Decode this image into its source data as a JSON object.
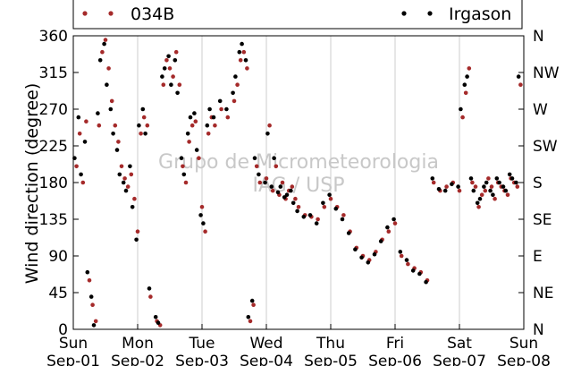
{
  "chart_data": {
    "type": "scatter",
    "title": "",
    "xlabel": "",
    "ylabel": "Wind direction (degree)",
    "ylim": [
      0,
      360
    ],
    "xlim_days": [
      0,
      7
    ],
    "y_ticks": [
      0,
      45,
      90,
      135,
      180,
      225,
      270,
      315,
      360
    ],
    "y_right_ticks": [
      {
        "value": 0,
        "label": "N"
      },
      {
        "value": 45,
        "label": "NE"
      },
      {
        "value": 90,
        "label": "E"
      },
      {
        "value": 135,
        "label": "SE"
      },
      {
        "value": 180,
        "label": "S"
      },
      {
        "value": 225,
        "label": "SW"
      },
      {
        "value": 270,
        "label": "W"
      },
      {
        "value": 315,
        "label": "NW"
      },
      {
        "value": 360,
        "label": "N"
      }
    ],
    "x_ticks": [
      {
        "day": "Sun",
        "date": "Sep-01"
      },
      {
        "day": "Mon",
        "date": "Sep-02"
      },
      {
        "day": "Tue",
        "date": "Sep-03"
      },
      {
        "day": "Wed",
        "date": "Sep-04"
      },
      {
        "day": "Thu",
        "date": "Sep-05"
      },
      {
        "day": "Fri",
        "date": "Sep-06"
      },
      {
        "day": "Sat",
        "date": "Sep-07"
      },
      {
        "day": "Sun",
        "date": "Sep-08"
      }
    ],
    "grid": "vertical",
    "legend_placement": "top",
    "watermark": [
      "Grupo de Micrometeorologia",
      "IAG / USP"
    ],
    "series": [
      {
        "name": "034B",
        "color": "#a52a2a",
        "points": [
          [
            0.05,
            200
          ],
          [
            0.1,
            240
          ],
          [
            0.15,
            180
          ],
          [
            0.2,
            255
          ],
          [
            0.25,
            60
          ],
          [
            0.3,
            30
          ],
          [
            0.35,
            10
          ],
          [
            0.4,
            250
          ],
          [
            0.45,
            340
          ],
          [
            0.5,
            355
          ],
          [
            0.55,
            320
          ],
          [
            0.6,
            280
          ],
          [
            0.65,
            250
          ],
          [
            0.7,
            230
          ],
          [
            0.75,
            200
          ],
          [
            0.8,
            185
          ],
          [
            0.85,
            175
          ],
          [
            0.9,
            190
          ],
          [
            0.95,
            160
          ],
          [
            1.0,
            120
          ],
          [
            1.05,
            240
          ],
          [
            1.1,
            260
          ],
          [
            1.15,
            250
          ],
          [
            1.2,
            40
          ],
          [
            1.3,
            10
          ],
          [
            1.35,
            5
          ],
          [
            1.4,
            300
          ],
          [
            1.45,
            330
          ],
          [
            1.5,
            320
          ],
          [
            1.55,
            310
          ],
          [
            1.6,
            340
          ],
          [
            1.65,
            300
          ],
          [
            1.7,
            200
          ],
          [
            1.75,
            180
          ],
          [
            1.8,
            230
          ],
          [
            1.85,
            250
          ],
          [
            1.9,
            255
          ],
          [
            1.95,
            210
          ],
          [
            2.0,
            150
          ],
          [
            2.05,
            120
          ],
          [
            2.1,
            240
          ],
          [
            2.15,
            260
          ],
          [
            2.2,
            250
          ],
          [
            2.3,
            270
          ],
          [
            2.4,
            260
          ],
          [
            2.5,
            280
          ],
          [
            2.55,
            300
          ],
          [
            2.6,
            330
          ],
          [
            2.65,
            340
          ],
          [
            2.7,
            320
          ],
          [
            2.75,
            10
          ],
          [
            2.8,
            30
          ],
          [
            2.85,
            200
          ],
          [
            2.9,
            180
          ],
          [
            3.0,
            185
          ],
          [
            3.1,
            170
          ],
          [
            3.2,
            165
          ],
          [
            3.3,
            160
          ],
          [
            3.4,
            175
          ],
          [
            3.5,
            150
          ],
          [
            3.6,
            140
          ],
          [
            3.7,
            138
          ],
          [
            3.8,
            135
          ],
          [
            3.9,
            150
          ],
          [
            4.0,
            160
          ],
          [
            4.1,
            150
          ],
          [
            4.2,
            140
          ],
          [
            4.3,
            120
          ],
          [
            4.4,
            100
          ],
          [
            4.5,
            90
          ],
          [
            4.6,
            85
          ],
          [
            4.7,
            95
          ],
          [
            4.8,
            110
          ],
          [
            4.9,
            120
          ],
          [
            5.0,
            130
          ],
          [
            5.1,
            90
          ],
          [
            5.2,
            80
          ],
          [
            5.3,
            75
          ],
          [
            5.4,
            70
          ],
          [
            5.5,
            60
          ],
          [
            5.6,
            180
          ],
          [
            5.7,
            170
          ],
          [
            5.8,
            175
          ],
          [
            5.9,
            180
          ],
          [
            6.0,
            170
          ],
          [
            6.05,
            260
          ],
          [
            6.1,
            290
          ],
          [
            6.15,
            320
          ],
          [
            6.2,
            180
          ],
          [
            6.25,
            175
          ],
          [
            6.3,
            150
          ],
          [
            6.35,
            165
          ],
          [
            6.4,
            170
          ],
          [
            6.45,
            185
          ],
          [
            6.5,
            175
          ],
          [
            6.55,
            160
          ],
          [
            6.6,
            180
          ],
          [
            6.65,
            175
          ],
          [
            6.7,
            170
          ],
          [
            6.75,
            165
          ],
          [
            6.8,
            185
          ],
          [
            6.85,
            180
          ],
          [
            6.9,
            175
          ],
          [
            6.95,
            300
          ],
          [
            3.05,
            250
          ],
          [
            3.15,
            200
          ],
          [
            3.25,
            180
          ],
          [
            3.35,
            170
          ],
          [
            3.45,
            160
          ]
        ]
      },
      {
        "name": "Irgason",
        "color": "#000000",
        "points": [
          [
            0.02,
            210
          ],
          [
            0.08,
            260
          ],
          [
            0.12,
            190
          ],
          [
            0.18,
            230
          ],
          [
            0.22,
            70
          ],
          [
            0.28,
            40
          ],
          [
            0.32,
            5
          ],
          [
            0.38,
            265
          ],
          [
            0.42,
            330
          ],
          [
            0.48,
            350
          ],
          [
            0.52,
            300
          ],
          [
            0.58,
            270
          ],
          [
            0.62,
            240
          ],
          [
            0.68,
            220
          ],
          [
            0.72,
            190
          ],
          [
            0.78,
            180
          ],
          [
            0.82,
            170
          ],
          [
            0.88,
            200
          ],
          [
            0.92,
            150
          ],
          [
            0.98,
            110
          ],
          [
            1.02,
            250
          ],
          [
            1.08,
            270
          ],
          [
            1.12,
            240
          ],
          [
            1.18,
            50
          ],
          [
            1.28,
            15
          ],
          [
            1.32,
            8
          ],
          [
            1.38,
            310
          ],
          [
            1.42,
            320
          ],
          [
            1.48,
            335
          ],
          [
            1.52,
            300
          ],
          [
            1.58,
            330
          ],
          [
            1.62,
            290
          ],
          [
            1.68,
            210
          ],
          [
            1.72,
            190
          ],
          [
            1.78,
            240
          ],
          [
            1.82,
            260
          ],
          [
            1.88,
            265
          ],
          [
            1.92,
            220
          ],
          [
            1.98,
            140
          ],
          [
            2.02,
            130
          ],
          [
            2.08,
            250
          ],
          [
            2.12,
            270
          ],
          [
            2.18,
            260
          ],
          [
            2.28,
            280
          ],
          [
            2.38,
            270
          ],
          [
            2.48,
            290
          ],
          [
            2.52,
            310
          ],
          [
            2.58,
            340
          ],
          [
            2.62,
            350
          ],
          [
            2.68,
            330
          ],
          [
            2.72,
            15
          ],
          [
            2.78,
            35
          ],
          [
            2.82,
            210
          ],
          [
            2.88,
            190
          ],
          [
            2.98,
            180
          ],
          [
            3.08,
            175
          ],
          [
            3.18,
            168
          ],
          [
            3.28,
            162
          ],
          [
            3.38,
            170
          ],
          [
            3.48,
            145
          ],
          [
            3.58,
            138
          ],
          [
            3.68,
            140
          ],
          [
            3.78,
            130
          ],
          [
            3.88,
            155
          ],
          [
            3.98,
            165
          ],
          [
            4.08,
            148
          ],
          [
            4.18,
            135
          ],
          [
            4.28,
            118
          ],
          [
            4.38,
            98
          ],
          [
            4.48,
            88
          ],
          [
            4.58,
            82
          ],
          [
            4.68,
            92
          ],
          [
            4.78,
            108
          ],
          [
            4.88,
            125
          ],
          [
            4.98,
            135
          ],
          [
            5.08,
            95
          ],
          [
            5.18,
            85
          ],
          [
            5.28,
            72
          ],
          [
            5.38,
            68
          ],
          [
            5.48,
            58
          ],
          [
            5.58,
            185
          ],
          [
            5.68,
            172
          ],
          [
            5.78,
            170
          ],
          [
            5.88,
            178
          ],
          [
            5.98,
            175
          ],
          [
            6.02,
            270
          ],
          [
            6.08,
            300
          ],
          [
            6.12,
            310
          ],
          [
            6.18,
            185
          ],
          [
            6.22,
            170
          ],
          [
            6.28,
            155
          ],
          [
            6.32,
            160
          ],
          [
            6.38,
            175
          ],
          [
            6.42,
            180
          ],
          [
            6.48,
            170
          ],
          [
            6.52,
            165
          ],
          [
            6.58,
            185
          ],
          [
            6.62,
            180
          ],
          [
            6.68,
            175
          ],
          [
            6.72,
            170
          ],
          [
            6.78,
            190
          ],
          [
            6.82,
            185
          ],
          [
            6.88,
            180
          ],
          [
            6.92,
            310
          ],
          [
            3.02,
            240
          ],
          [
            3.12,
            210
          ],
          [
            3.22,
            175
          ],
          [
            3.32,
            165
          ],
          [
            3.42,
            155
          ]
        ]
      }
    ]
  }
}
